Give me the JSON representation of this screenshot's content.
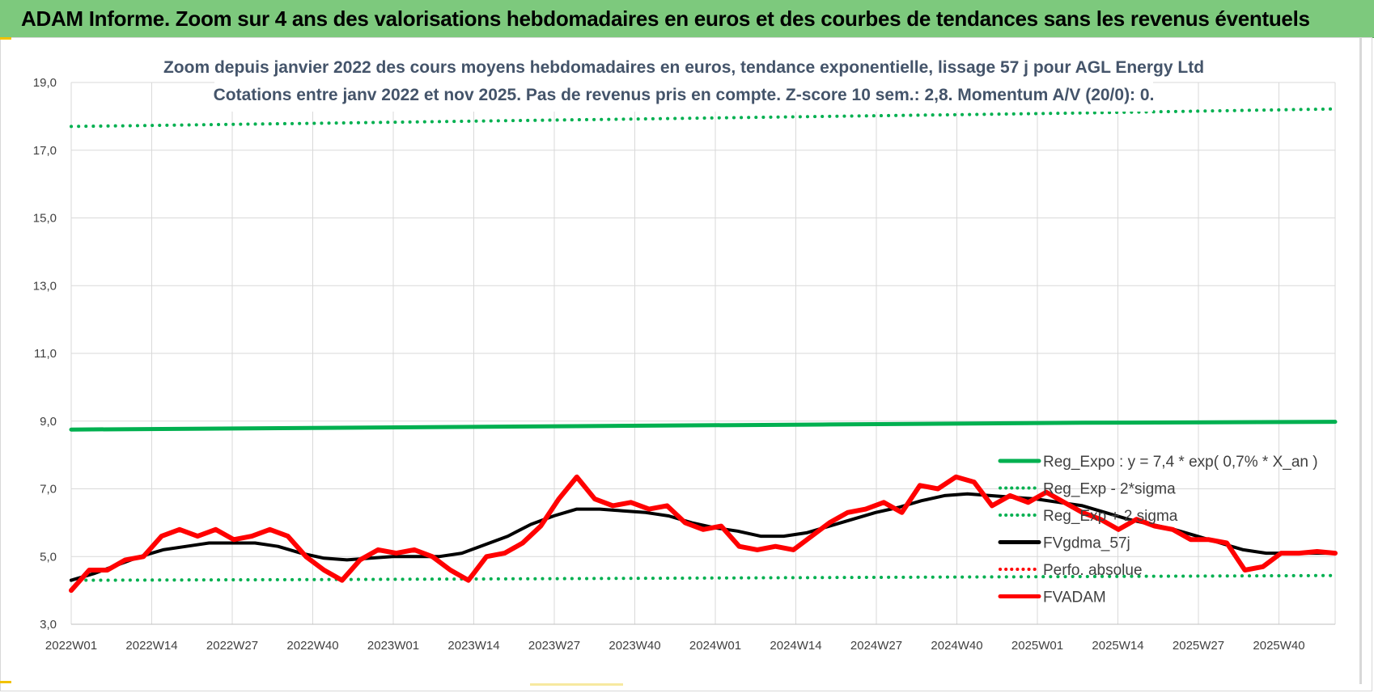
{
  "header": {
    "title": "ADAM Informe. Zoom sur 4 ans des valorisations hebdomadaires en euros et des courbes de tendances sans les revenus éventuels"
  },
  "chart_data": {
    "type": "line",
    "title": "Zoom depuis janvier 2022 des cours moyens hebdomadaires en euros, tendance exponentielle, lissage 57 j pour AGL Energy Ltd",
    "subtitle": "Cotations entre janv 2022 et nov 2025. Pas de revenus pris en compte. Z-score 10 sem.: 2,8. Momentum A/V (20/0): 0.",
    "xlabel": "",
    "ylabel": "",
    "ylim": [
      3.0,
      19.0
    ],
    "yticks": [
      "3,0",
      "5,0",
      "7,0",
      "9,0",
      "11,0",
      "13,0",
      "15,0",
      "17,0",
      "19,0"
    ],
    "xticks": [
      "2022W01",
      "2022W14",
      "2022W27",
      "2022W40",
      "2023W01",
      "2023W14",
      "2023W27",
      "2023W40",
      "2024W01",
      "2024W14",
      "2024W27",
      "2024W40",
      "2025W01",
      "2025W14",
      "2025W27",
      "2025W40"
    ],
    "grid": true,
    "legend_position": "right",
    "series": [
      {
        "name": "Reg_Expo : y = 7,4 * exp( 0,7% *  X_an )",
        "color": "#00b050",
        "style": "solid",
        "values": [
          8.75,
          8.8,
          8.85,
          8.9,
          8.95,
          8.98
        ]
      },
      {
        "name": "Reg_Exp - 2*sigma",
        "color": "#00b050",
        "style": "dotted",
        "values": [
          4.3,
          4.32,
          4.35,
          4.38,
          4.41,
          4.44
        ]
      },
      {
        "name": "Reg_Exp + 2 sigma",
        "color": "#00b050",
        "style": "dotted",
        "values": [
          17.7,
          17.8,
          17.9,
          18.0,
          18.1,
          18.22
        ]
      },
      {
        "name": "FVgdma_57j",
        "color": "#000000",
        "style": "solid",
        "values": [
          4.3,
          4.5,
          4.75,
          5.0,
          5.2,
          5.3,
          5.4,
          5.4,
          5.4,
          5.3,
          5.1,
          4.95,
          4.9,
          4.95,
          5.0,
          5.0,
          5.0,
          5.1,
          5.35,
          5.6,
          5.95,
          6.2,
          6.4,
          6.4,
          6.35,
          6.3,
          6.2,
          6.0,
          5.85,
          5.75,
          5.6,
          5.6,
          5.7,
          5.9,
          6.1,
          6.3,
          6.45,
          6.65,
          6.8,
          6.85,
          6.8,
          6.75,
          6.7,
          6.6,
          6.5,
          6.3,
          6.1,
          5.95,
          5.8,
          5.6,
          5.4,
          5.2,
          5.1,
          5.1,
          5.1,
          5.1
        ]
      },
      {
        "name": "Perfo. absolue",
        "color": "#ff0000",
        "style": "dotted",
        "values": []
      },
      {
        "name": "FVADAM",
        "color": "#ff0000",
        "style": "solid",
        "values": [
          4.0,
          4.6,
          4.6,
          4.9,
          5.0,
          5.6,
          5.8,
          5.6,
          5.8,
          5.5,
          5.6,
          5.8,
          5.6,
          5.0,
          4.6,
          4.3,
          4.9,
          5.2,
          5.1,
          5.2,
          5.0,
          4.6,
          4.3,
          5.0,
          5.1,
          5.4,
          5.9,
          6.7,
          7.35,
          6.7,
          6.5,
          6.6,
          6.4,
          6.5,
          6.0,
          5.8,
          5.9,
          5.3,
          5.2,
          5.3,
          5.2,
          5.6,
          6.0,
          6.3,
          6.4,
          6.6,
          6.3,
          7.1,
          7.0,
          7.35,
          7.2,
          6.5,
          6.8,
          6.6,
          6.9,
          6.6,
          6.3,
          6.1,
          5.8,
          6.1,
          5.9,
          5.8,
          5.5,
          5.5,
          5.4,
          4.6,
          4.7,
          5.1,
          5.1,
          5.15,
          5.1
        ]
      }
    ]
  }
}
